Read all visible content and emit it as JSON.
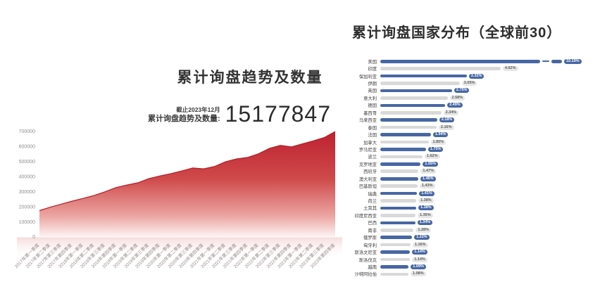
{
  "colors": {
    "bar_blue": "#4767a3",
    "bar_gray": "#d9d9d9",
    "pill_gray_bg": "#e6e6e6",
    "area_red": "#c0262d",
    "area_line": "#b21f27"
  },
  "left_panel": {
    "title": "累计询盘趋势及数量",
    "as_of": "截止2023年12月",
    "stat_label": "累计询盘趋势及数量:",
    "stat_value": "15177847"
  },
  "right_panel": {
    "title": "累计询盘国家分布（全球前30）"
  },
  "chart_data": [
    {
      "type": "area",
      "title": "累计询盘趋势及数量",
      "note_as_of": "截止2023年12月",
      "total_value": "15177847",
      "x": [
        "2017年第一季度",
        "2017年第二季度",
        "2017年第三季度",
        "2017年第四季度",
        "2018年第一季度",
        "2018年第二季度",
        "2018年第三季度",
        "2018年第四季度",
        "2019年第一季度",
        "2019年第二季度",
        "2019年第三季度",
        "2019年第四季度",
        "2020年第一季度",
        "2020年第二季度",
        "2020年第三季度",
        "2020年第四季度",
        "2021年第一季度",
        "2021年第二季度",
        "2021年第三季度",
        "2021年第四季度",
        "2022年第一季度",
        "2022年第二季度",
        "2022年第三季度",
        "2022年第四季度",
        "2023年第一季度",
        "2023年第二季度",
        "2023年第三季度",
        "2023年第四季度"
      ],
      "values": [
        175000,
        198000,
        218000,
        238000,
        256000,
        276000,
        300000,
        328000,
        345000,
        360000,
        388000,
        405000,
        420000,
        438000,
        458000,
        452000,
        468000,
        500000,
        518000,
        528000,
        552000,
        588000,
        608000,
        598000,
        618000,
        638000,
        660000,
        700000
      ],
      "yticks": [
        "0",
        "100000",
        "200000",
        "300000",
        "400000",
        "500000",
        "600000",
        "700000"
      ],
      "ylim": [
        0,
        700000
      ],
      "grid": false,
      "legend": false
    },
    {
      "type": "bar",
      "orientation": "horizontal",
      "title": "累计询盘国家分布（全球前30）",
      "unit": "%",
      "broken_bar_index": 0,
      "categories": [
        "美国",
        "印度",
        "保加利亚",
        "伊朗",
        "英国",
        "意大利",
        "德国",
        "墨西哥",
        "马来西亚",
        "泰国",
        "法国",
        "加拿大",
        "罗马尼亚",
        "波兰",
        "克罗地亚",
        "西班牙",
        "澳大利亚",
        "巴基斯坦",
        "瑞典",
        "荷兰",
        "土耳其",
        "印度尼西亚",
        "巴西",
        "南非",
        "俄罗斯",
        "匈牙利",
        "斯洛文尼亚",
        "斯洛伐克",
        "越南",
        "沙特阿拉伯"
      ],
      "values": [
        33.19,
        4.62,
        3.32,
        3.05,
        2.75,
        2.58,
        2.49,
        2.34,
        2.18,
        2.16,
        1.94,
        1.85,
        1.75,
        1.62,
        1.55,
        1.47,
        1.46,
        1.43,
        1.41,
        1.38,
        1.38,
        1.35,
        1.34,
        1.28,
        1.22,
        1.16,
        1.14,
        1.14,
        1.09,
        1.08
      ],
      "labels": [
        "33.19%",
        "4.62%",
        "3.32%",
        "3.05%",
        "2.75%",
        "2.58%",
        "2.49%",
        "2.34%",
        "2.18%",
        "2.16%",
        "1.94%",
        "1.85%",
        "1.75%",
        "1.62%",
        "1.55%",
        "1.47%",
        "1.46%",
        "1.43%",
        "1.41%",
        "1.38%",
        "1.38%",
        "1.35%",
        "1.34%",
        "1.28%",
        "1.22%",
        "1.16%",
        "1.14%",
        "1.14%",
        "1.09%",
        "1.08%"
      ]
    }
  ]
}
